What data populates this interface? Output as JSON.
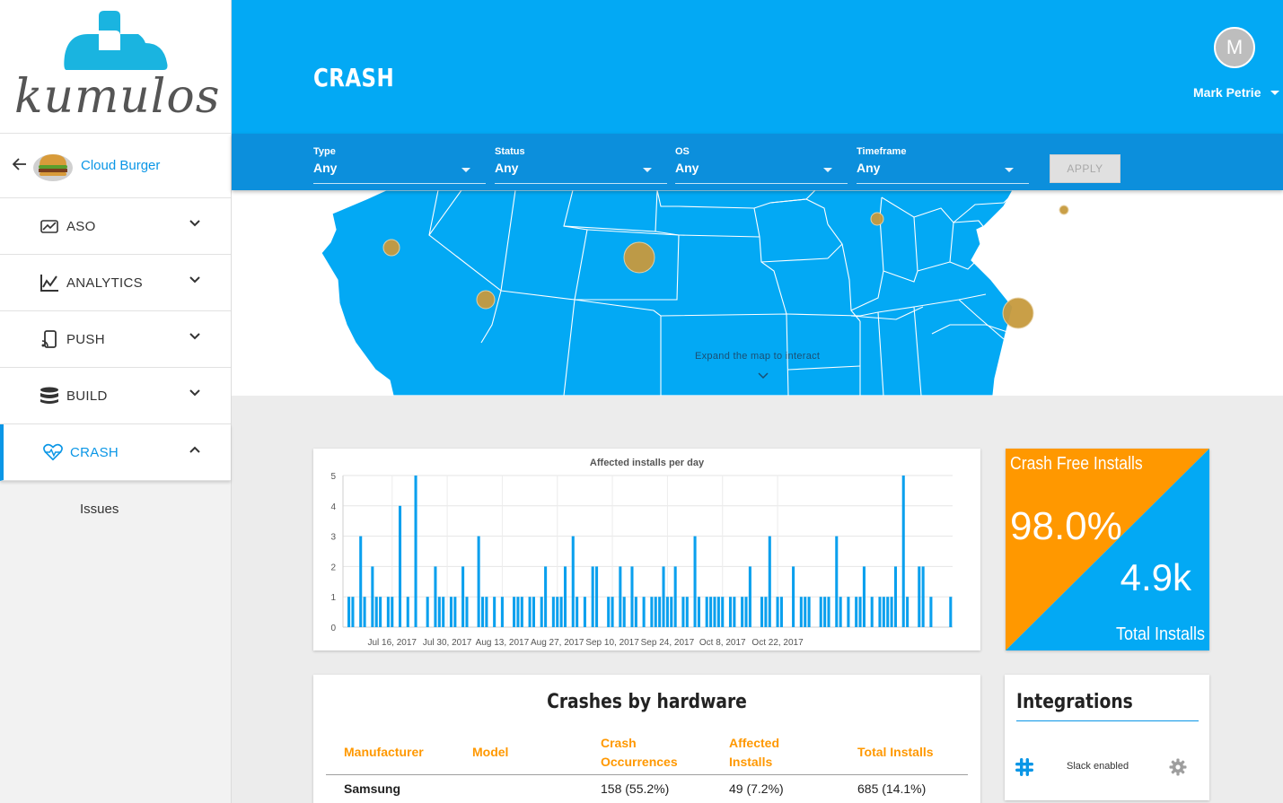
{
  "brand": {
    "name": "kumulos",
    "cloud_color": "#1ab4e0"
  },
  "app": {
    "back_icon": "arrow-left-icon",
    "name": "Cloud Burger"
  },
  "sidebar": {
    "items": [
      {
        "label": "ASO",
        "icon": "aso-trend-icon",
        "expanded": false
      },
      {
        "label": "ANALYTICS",
        "icon": "line-chart-icon",
        "expanded": false
      },
      {
        "label": "PUSH",
        "icon": "push-device-icon",
        "expanded": false
      },
      {
        "label": "BUILD",
        "icon": "database-icon",
        "expanded": false
      },
      {
        "label": "CRASH",
        "icon": "heartbeat-icon",
        "expanded": true
      }
    ],
    "sub_items": [
      {
        "label": "Issues"
      }
    ]
  },
  "header": {
    "title": "CRASH",
    "user": {
      "initial": "M",
      "name": "Mark Petrie"
    },
    "bg_color": "#03a9f4"
  },
  "filters": {
    "items": [
      {
        "label": "Type",
        "value": "Any"
      },
      {
        "label": "Status",
        "value": "Any"
      },
      {
        "label": "OS",
        "value": "Any"
      },
      {
        "label": "Timeframe",
        "value": "Any"
      }
    ],
    "apply_label": "APPLY"
  },
  "map": {
    "hint": "Expand the map to interact",
    "land_color": "#03a9f4",
    "marker_color": "#c79a3e"
  },
  "chart_data": {
    "type": "bar",
    "title": "Affected installs per day",
    "ylim": [
      0,
      5
    ],
    "y_ticks": [
      0,
      1,
      2,
      3,
      4,
      5
    ],
    "x_ticks": [
      "Jul 16, 2017",
      "Jul 30, 2017",
      "Aug 13, 2017",
      "Aug 27, 2017",
      "Sep 10, 2017",
      "Sep 24, 2017",
      "Oct 8, 2017",
      "Oct 22, 2017"
    ],
    "x_start": "Jul 4, 2017",
    "x_end": "Nov 1, 2017",
    "values": [
      0,
      1,
      1,
      0,
      3,
      1,
      0,
      2,
      1,
      1,
      0,
      1,
      1,
      0,
      4,
      0,
      1,
      0,
      5,
      0,
      0,
      1,
      0,
      2,
      1,
      1,
      0,
      1,
      1,
      0,
      2,
      1,
      0,
      0,
      3,
      1,
      1,
      0,
      1,
      0,
      1,
      0,
      0,
      1,
      1,
      1,
      0,
      1,
      1,
      0,
      1,
      2,
      0,
      1,
      1,
      1,
      2,
      0,
      3,
      1,
      0,
      1,
      0,
      2,
      2,
      0,
      0,
      1,
      1,
      0,
      2,
      1,
      0,
      2,
      1,
      0,
      1,
      0,
      1,
      1,
      1,
      2,
      1,
      1,
      2,
      0,
      1,
      1,
      0,
      3,
      1,
      0,
      1,
      1,
      1,
      1,
      1,
      0,
      1,
      1,
      0,
      1,
      1,
      2,
      0,
      0,
      1,
      1,
      3,
      0,
      1,
      1,
      0,
      0,
      2,
      0,
      1,
      1,
      1,
      0,
      0,
      1,
      1,
      1,
      0,
      3,
      1,
      0,
      1,
      0,
      1,
      1,
      2,
      0,
      1,
      0,
      1,
      1,
      1,
      1,
      2,
      0,
      5,
      1,
      0,
      0,
      2,
      2,
      0,
      1,
      0,
      0,
      0,
      0,
      1
    ],
    "color": "#0aa0ee",
    "grid": true
  },
  "crash_free": {
    "title": "Crash Free Installs",
    "percent": "98.0%",
    "total": "4.9k",
    "total_label": "Total Installs",
    "orange": "#ff9800",
    "blue": "#03a9f4"
  },
  "hardware": {
    "title": "Crashes by hardware",
    "columns": [
      {
        "line1": "Manufacturer",
        "line2": ""
      },
      {
        "line1": "Model",
        "line2": ""
      },
      {
        "line1": "Crash",
        "line2": "Occurrences"
      },
      {
        "line1": "Affected",
        "line2": "Installs"
      },
      {
        "line1": "Total Installs",
        "line2": ""
      }
    ],
    "rows": [
      {
        "manufacturer": "Samsung",
        "model": "",
        "occurrences": "158 (55.2%)",
        "affected": "49 (7.2%)",
        "total": "685 (14.1%)"
      }
    ]
  },
  "integrations": {
    "title": "Integrations",
    "items": [
      {
        "icon": "slack-icon",
        "label": "Slack enabled",
        "settings_icon": "gear-icon"
      }
    ]
  }
}
